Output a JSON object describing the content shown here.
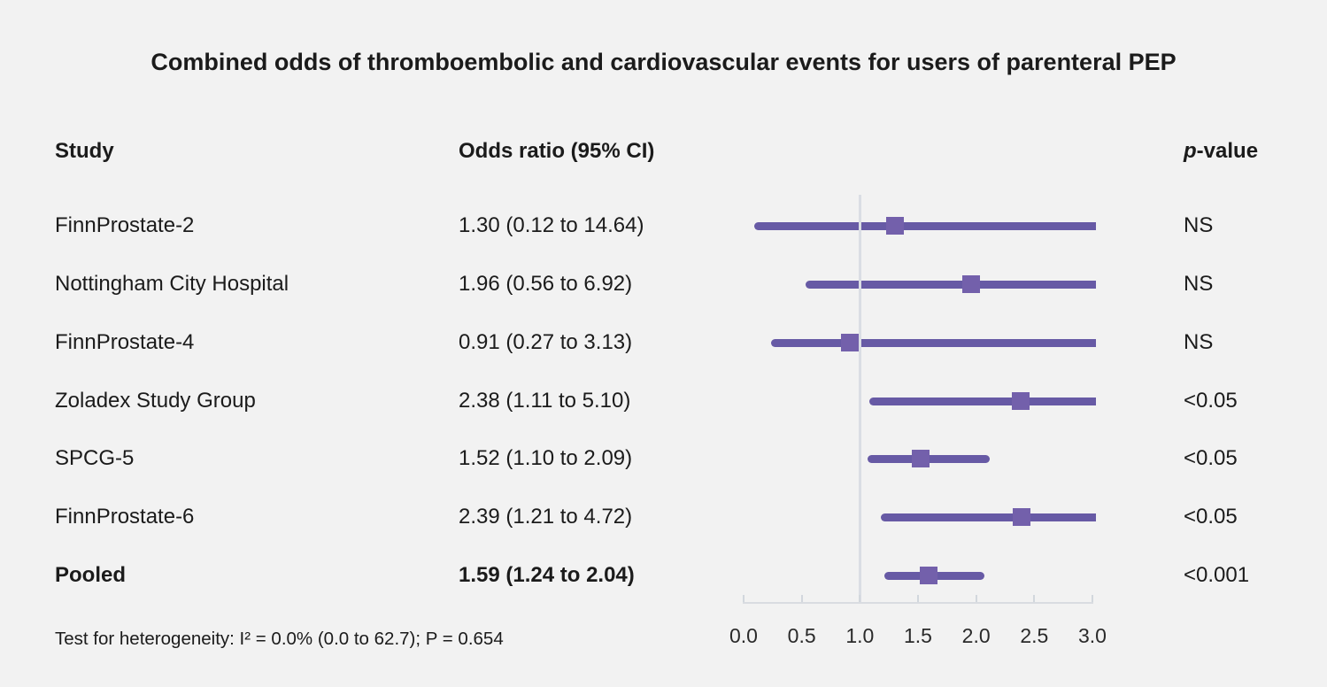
{
  "title": "Combined odds of thromboembolic and cardiovascular events for users of parenteral PEP",
  "columns": {
    "study": "Study",
    "odds_ratio": "Odds ratio (95% CI)",
    "p_italic": "p",
    "p_rest": "-value"
  },
  "footnote": "Test for heterogeneity: I² = 0.0% (0.0 to 62.7); P = 0.654",
  "colors": {
    "background": "#f2f2f2",
    "text": "#1b1b1b",
    "ci_line": "#675aa5",
    "marker": "#7360ab",
    "axis_line": "#d9dce1",
    "tick": "#d2d7dd",
    "reference_line": "#dadde4"
  },
  "chart_data": {
    "type": "scatter",
    "variant": "forest-plot",
    "title": "Combined odds of thromboembolic and cardiovascular events for users of parenteral PEP",
    "xlabel": "Odds ratio",
    "xlim": [
      0.0,
      3.0
    ],
    "x_ticks": [
      0.0,
      0.5,
      1.0,
      1.5,
      2.0,
      2.5,
      3.0
    ],
    "reference_line_x": 1.0,
    "grid": "off",
    "studies": [
      {
        "study": "FinnProstate-2",
        "or": 1.3,
        "ci_low": 0.12,
        "ci_high": 14.64,
        "or_ci_label": "1.30 (0.12 to 14.64)",
        "p_value": "NS",
        "pooled": false
      },
      {
        "study": "Nottingham City Hospital",
        "or": 1.96,
        "ci_low": 0.56,
        "ci_high": 6.92,
        "or_ci_label": "1.96 (0.56 to 6.92)",
        "p_value": "NS",
        "pooled": false
      },
      {
        "study": "FinnProstate-4",
        "or": 0.91,
        "ci_low": 0.27,
        "ci_high": 3.13,
        "or_ci_label": "0.91 (0.27 to 3.13)",
        "p_value": "NS",
        "pooled": false
      },
      {
        "study": "Zoladex Study Group",
        "or": 2.38,
        "ci_low": 1.11,
        "ci_high": 5.1,
        "or_ci_label": "2.38 (1.11 to 5.10)",
        "p_value": "<0.05",
        "pooled": false
      },
      {
        "study": "SPCG-5",
        "or": 1.52,
        "ci_low": 1.1,
        "ci_high": 2.09,
        "or_ci_label": "1.52 (1.10 to 2.09)",
        "p_value": "<0.05",
        "pooled": false
      },
      {
        "study": "FinnProstate-6",
        "or": 2.39,
        "ci_low": 1.21,
        "ci_high": 4.72,
        "or_ci_label": "2.39 (1.21 to 4.72)",
        "p_value": "<0.05",
        "pooled": false
      },
      {
        "study": "Pooled",
        "or": 1.59,
        "ci_low": 1.24,
        "ci_high": 2.04,
        "or_ci_label": "1.59 (1.24 to 2.04)",
        "p_value": "<0.001",
        "pooled": true
      }
    ],
    "heterogeneity_note": "Test for heterogeneity: I² = 0.0% (0.0 to 62.7); P = 0.654"
  }
}
